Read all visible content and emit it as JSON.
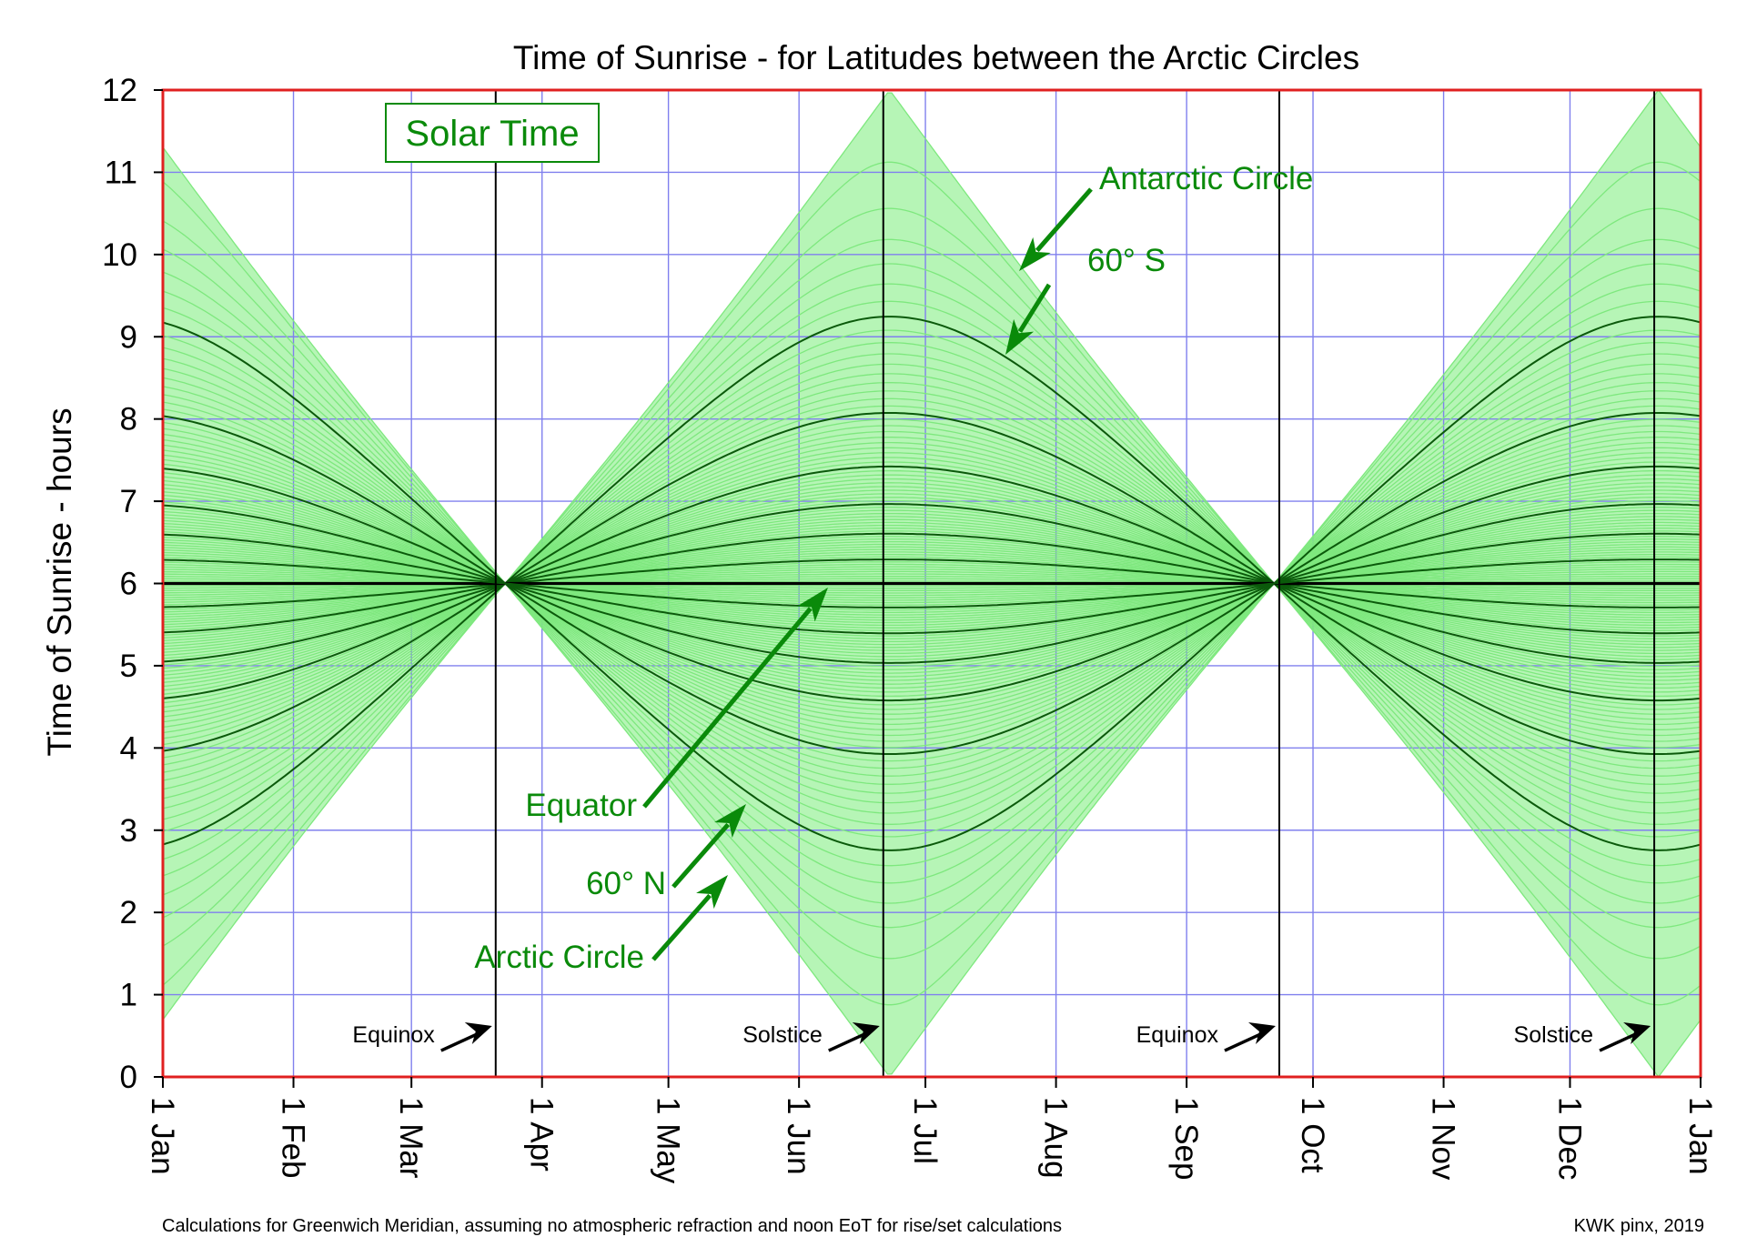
{
  "chart_data": {
    "type": "line",
    "title": "Time of Sunrise - for Latitudes between the Arctic Circles",
    "ylabel": "Time of Sunrise - hours",
    "xlabel": "",
    "ylim": [
      0,
      12
    ],
    "yticks": [
      "0",
      "1",
      "2",
      "3",
      "4",
      "5",
      "6",
      "7",
      "8",
      "9",
      "10",
      "11",
      "12"
    ],
    "xticks": [
      "1 Jan",
      "1 Feb",
      "1 Mar",
      "1 Apr",
      "1 May",
      "1 Jun",
      "1 Jul",
      "1 Aug",
      "1 Sep",
      "1 Oct",
      "1 Nov",
      "1 Dec",
      "1 Jan"
    ],
    "xtick_days": [
      0,
      31,
      59,
      90,
      120,
      151,
      181,
      212,
      243,
      273,
      304,
      334,
      365
    ],
    "xlim_days": [
      0,
      365
    ],
    "grid": true,
    "frame_color": "#e02020",
    "grid_color": "#8080ee",
    "thin_line_color": "#7ee87e",
    "band_fill_color": "#b6f5b6",
    "bold_line_color": "#0b5a0b",
    "label_color": "#0a8a0a",
    "solar_time_box": "Solar Time",
    "series_description": "Sunrise time vs date for latitudes every 1 degree from 66.56 N (Arctic Circle) to 66.56 S (Antarctic Circle); darker lines every 10 degrees",
    "latitude_step_deg": 1,
    "bold_step_deg": 10,
    "max_latitude_deg": 66.56,
    "key_series": [
      {
        "name": "Equator",
        "sunrise_hours_constant": 6.0
      },
      {
        "name": "60° N",
        "jan1": 9.15,
        "jun21": 2.75
      },
      {
        "name": "60° S",
        "jan1": 2.85,
        "jun21": 9.25
      },
      {
        "name": "Arctic Circle",
        "jun21": 0.0
      },
      {
        "name": "Antarctic Circle",
        "jun21": 12.0
      }
    ],
    "event_lines": [
      {
        "label": "Equinox",
        "day": 79
      },
      {
        "label": "Solstice",
        "day": 171
      },
      {
        "label": "Equinox",
        "day": 265
      },
      {
        "label": "Solstice",
        "day": 354
      }
    ],
    "annotations": [
      {
        "text": "Antarctic Circle"
      },
      {
        "text": "60° S"
      },
      {
        "text": "Equator"
      },
      {
        "text": "60° N"
      },
      {
        "text": "Arctic Circle"
      }
    ]
  },
  "footer": {
    "note": "Calculations for Greenwich Meridian, assuming no atmospheric refraction and noon EoT for rise/set calculations",
    "credit": "KWK pinx, 2019"
  }
}
